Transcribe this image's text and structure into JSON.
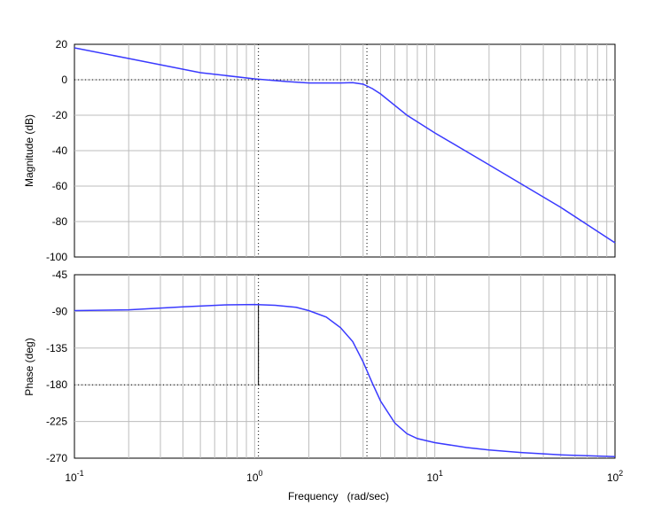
{
  "chart_data": [
    {
      "type": "line",
      "panel": "magnitude",
      "xlabel": "Frequency   (rad/sec)",
      "ylabel": "Magnitude (dB)",
      "xscale": "log",
      "xlim": [
        0.1,
        100
      ],
      "ylim": [
        -100,
        20
      ],
      "yticks": [
        20,
        0,
        -20,
        -40,
        -60,
        -80,
        -100
      ],
      "grid": true,
      "reference_lines": {
        "y": 0,
        "style": "dotted",
        "x_markers": [
          1.05,
          4.2
        ]
      },
      "series": [
        {
          "color": "#3a3aff",
          "x": [
            0.1,
            0.2,
            0.5,
            1.0,
            1.5,
            2.0,
            3.0,
            3.5,
            4.0,
            4.5,
            5.0,
            7.0,
            10.0,
            20.0,
            50.0,
            100.0
          ],
          "y": [
            18,
            12,
            4,
            0.5,
            -1,
            -1.8,
            -1.8,
            -1.6,
            -2.5,
            -5,
            -8,
            -20,
            -30,
            -48,
            -72,
            -92
          ]
        }
      ]
    },
    {
      "type": "line",
      "panel": "phase",
      "xlabel": "Frequency   (rad/sec)",
      "ylabel": "Phase (deg)",
      "xscale": "log",
      "xlim": [
        0.1,
        100
      ],
      "ylim": [
        -270,
        -45
      ],
      "yticks": [
        -45,
        -90,
        -135,
        -180,
        -225,
        -270
      ],
      "grid": true,
      "reference_lines": {
        "y": -180,
        "style": "dotted",
        "x_markers": [
          1.05,
          4.2
        ]
      },
      "xtick_labels": [
        {
          "base": "10",
          "exp": "-1"
        },
        {
          "base": "10",
          "exp": "0"
        },
        {
          "base": "10",
          "exp": "1"
        },
        {
          "base": "10",
          "exp": "2"
        }
      ],
      "series": [
        {
          "color": "#3a3aff",
          "x": [
            0.1,
            0.2,
            0.4,
            0.7,
            1.0,
            1.3,
            1.7,
            2.0,
            2.5,
            3.0,
            3.5,
            4.0,
            4.5,
            5.0,
            6.0,
            7.0,
            8.0,
            10.0,
            15.0,
            20.0,
            30.0,
            50.0,
            100.0
          ],
          "y": [
            -89,
            -88,
            -84.5,
            -82,
            -81.5,
            -82.5,
            -85,
            -89,
            -97,
            -110,
            -127,
            -152,
            -178,
            -200,
            -227,
            -240,
            -246,
            -251,
            -257,
            -260,
            -263,
            -266,
            -268
          ]
        }
      ]
    }
  ]
}
